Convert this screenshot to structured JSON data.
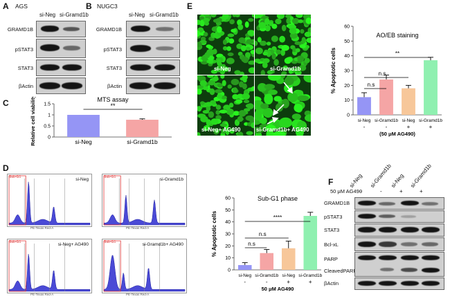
{
  "panels": {
    "A": "A",
    "B": "B",
    "C": "C",
    "D": "D",
    "E": "E",
    "F": "F"
  },
  "panel_a": {
    "cell_line": "AGS",
    "lanes": [
      "si-Neg",
      "si-Gramd1b"
    ],
    "rows": [
      "GRAMD1B",
      "pSTAT3",
      "STAT3",
      "βActin"
    ]
  },
  "panel_b": {
    "cell_line": "NUGC3",
    "lanes": [
      "si-Neg",
      "si-Gramd1b"
    ],
    "rows": [
      "GRAMD1B",
      "pSTAT3",
      "STAT3",
      "βActin"
    ]
  },
  "panel_e_images": {
    "labels": [
      "si-Neg",
      "si-Gramd1b",
      "si-Neg+ AG490",
      "si-Gramd1b+ AG490"
    ]
  },
  "panel_d_flow": {
    "labels": [
      "si-Neg",
      "si-Gramd1b",
      "si-Neg+ AG490",
      "si-Gramd1b+ AG490"
    ],
    "axis_x": "PE-Texas Red-A",
    "gate": "Sub-G1"
  },
  "panel_f": {
    "lanes": [
      "si-Neg",
      "si-Gramd1b",
      "si-Neg",
      "si-Gramd1b"
    ],
    "ag490_label": "50 μM AG490",
    "ag490_marks": [
      "-",
      "-",
      "+",
      "+"
    ],
    "rows": [
      "GRAMD1B",
      "pSTAT3",
      "STAT3",
      "Bcl-xL",
      "PARP",
      "CleavedPARP",
      "βActin"
    ]
  },
  "chart_data": [
    {
      "id": "C",
      "type": "bar",
      "title": "MTS assay",
      "ylabel": "Relative cell viability",
      "categories": [
        "si-Neg",
        "si-Gramd1b"
      ],
      "values": [
        1.0,
        0.78
      ],
      "errors": [
        0,
        0.04
      ],
      "colors": [
        "#9595f5",
        "#f5a5a5"
      ],
      "ylim": [
        0,
        1.5
      ],
      "yticks": [
        "0",
        "0.5",
        "1",
        "1.5"
      ],
      "significance": "**"
    },
    {
      "id": "E",
      "type": "bar",
      "title": "AO/EB staining",
      "ylabel": "% Apoptotic cells",
      "categories": [
        "si-Neg",
        "si-Gramd1b",
        "si-Neg",
        "si-Gramd1b"
      ],
      "values": [
        12,
        24,
        18,
        37
      ],
      "errors": [
        3,
        3,
        2,
        2
      ],
      "colors": [
        "#9595f5",
        "#f5a5a5",
        "#f7c79a",
        "#8ff0b0"
      ],
      "ylim": [
        0,
        60
      ],
      "yticks": [
        "0",
        "10",
        "20",
        "30",
        "40",
        "50",
        "60"
      ],
      "treatment_marks": [
        "-",
        "-",
        "+",
        "+"
      ],
      "treatment_label": "(50 μM AG490)",
      "brackets": [
        {
          "from": 0,
          "to": 1,
          "label": "n.s"
        },
        {
          "from": 0,
          "to": 2,
          "label": "n.s"
        },
        {
          "from": 0,
          "to": 3,
          "label": "**"
        }
      ]
    },
    {
      "id": "D",
      "type": "bar",
      "title": "Sub-G1 phase",
      "ylabel": "% Apoptotic cells",
      "categories": [
        "si-Neg",
        "si-Gramd1b",
        "si-Neg",
        "si-Gramd1b"
      ],
      "values": [
        4,
        14,
        18,
        45
      ],
      "errors": [
        2,
        3,
        6,
        3
      ],
      "colors": [
        "#9595f5",
        "#f5a5a5",
        "#f7c79a",
        "#8ff0b0"
      ],
      "ylim": [
        0,
        60
      ],
      "yticks": [
        "0",
        "10",
        "20",
        "30",
        "40",
        "50",
        "60"
      ],
      "treatment_marks": [
        "-",
        "-",
        "+",
        "+"
      ],
      "treatment_label": "50 μM AG490",
      "brackets": [
        {
          "from": 0,
          "to": 1,
          "label": "n.s"
        },
        {
          "from": 0,
          "to": 2,
          "label": "n.s"
        },
        {
          "from": 0,
          "to": 3,
          "label": "****"
        }
      ]
    }
  ]
}
